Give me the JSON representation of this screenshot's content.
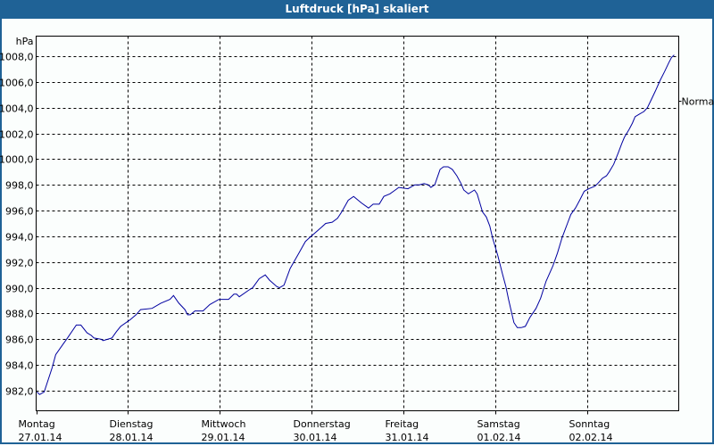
{
  "window": {
    "title": "Luftdruck [hPa] skaliert"
  },
  "colors": {
    "titlebar": "#1f6296",
    "line": "#0000a0",
    "background": "#fbfefd",
    "grid": "#000000"
  },
  "chart_data": {
    "type": "line",
    "title": "Luftdruck [hPa] skaliert",
    "ylabel": "hPa",
    "xlabel": "",
    "ylim": [
      980.5,
      1009.6
    ],
    "yticks": [
      982.0,
      984.0,
      986.0,
      988.0,
      990.0,
      992.0,
      994.0,
      996.0,
      998.0,
      1000.0,
      1002.0,
      1004.0,
      1006.0,
      1008.0
    ],
    "ytick_labels": [
      "982,0",
      "984,0",
      "986,0",
      "988,0",
      "990,0",
      "992,0",
      "994,0",
      "996,0",
      "998,0",
      "1000,0",
      "1002,0",
      "1004,0",
      "1006,0",
      "1008,0"
    ],
    "x_unit": "hours since Montag 27.01.14 00:00",
    "xlim": [
      0,
      168
    ],
    "xticks": [
      {
        "hour": 0,
        "day": "Montag",
        "date": "27.01.14"
      },
      {
        "hour": 24,
        "day": "Dienstag",
        "date": "28.01.14"
      },
      {
        "hour": 48,
        "day": "Mittwoch",
        "date": "29.01.14"
      },
      {
        "hour": 72,
        "day": "Donnerstag",
        "date": "30.01.14"
      },
      {
        "hour": 96,
        "day": "Freitag",
        "date": "31.01.14"
      },
      {
        "hour": 120,
        "day": "Samstag",
        "date": "01.02.14"
      },
      {
        "hour": 144,
        "day": "Sonntag",
        "date": "02.02.14"
      }
    ],
    "reference_marker": {
      "label": "Normal",
      "value": 1004.5
    },
    "grid": true,
    "series": [
      {
        "name": "Luftdruck",
        "x": [
          0.2,
          0.9,
          2.1,
          4.2,
          5.1,
          7.0,
          8.2,
          10.5,
          11.7,
          13.3,
          14.4,
          15.1,
          17.0,
          17.5,
          19.8,
          21.0,
          22.1,
          24.5,
          26.1,
          27.3,
          30.3,
          32.6,
          35.0,
          35.9,
          37.3,
          38.9,
          39.6,
          40.3,
          41.5,
          43.6,
          45.4,
          47.8,
          50.3,
          51.7,
          52.4,
          53.1,
          55.5,
          56.6,
          58.3,
          59.9,
          61.0,
          62.9,
          63.6,
          64.8,
          66.4,
          68.7,
          70.4,
          71.5,
          73.4,
          74.6,
          75.7,
          77.4,
          78.8,
          79.9,
          81.6,
          83.0,
          85.0,
          86.9,
          88.1,
          89.7,
          90.9,
          92.5,
          93.9,
          94.8,
          97.2,
          99.0,
          100.2,
          101.4,
          102.5,
          103.2,
          104.2,
          104.9,
          105.6,
          106.5,
          107.7,
          108.8,
          110.0,
          111.1,
          111.8,
          113.0,
          114.6,
          115.3,
          116.0,
          116.7,
          117.7,
          118.6,
          119.3,
          120.0,
          120.7,
          121.9,
          122.8,
          123.5,
          124.2,
          124.9,
          125.8,
          126.8,
          127.9,
          129.1,
          130.7,
          131.9,
          133.3,
          135.1,
          136.3,
          137.5,
          138.9,
          139.8,
          141.0,
          142.1,
          143.3,
          144.5,
          146.1,
          146.8,
          148.0,
          149.1,
          149.8,
          151.0,
          152.2,
          153.1,
          153.8,
          155.0,
          155.9,
          156.6,
          157.7,
          158.9,
          159.8,
          160.8,
          161.9,
          163.1,
          164.3,
          165.4,
          166.1,
          166.8
        ],
        "values": [
          981.9,
          981.7,
          981.9,
          983.8,
          984.8,
          985.6,
          986.1,
          987.1,
          987.1,
          986.5,
          986.3,
          986.1,
          986.0,
          985.9,
          986.1,
          986.6,
          987.0,
          987.5,
          987.9,
          988.3,
          988.4,
          988.8,
          989.1,
          989.4,
          988.8,
          988.3,
          987.9,
          987.9,
          988.2,
          988.2,
          988.7,
          989.1,
          989.1,
          989.5,
          989.5,
          989.3,
          989.8,
          990.0,
          990.7,
          991.0,
          990.6,
          990.1,
          990.0,
          990.2,
          991.5,
          992.7,
          993.6,
          993.9,
          994.4,
          994.7,
          995.0,
          995.1,
          995.4,
          995.9,
          996.8,
          997.1,
          996.6,
          996.2,
          996.5,
          996.5,
          997.1,
          997.3,
          997.6,
          997.8,
          997.7,
          998.0,
          998.0,
          998.1,
          998.0,
          997.8,
          998.0,
          998.6,
          999.2,
          999.4,
          999.4,
          999.2,
          998.7,
          998.1,
          997.6,
          997.3,
          997.6,
          997.3,
          996.6,
          995.9,
          995.5,
          994.8,
          993.9,
          993.2,
          992.5,
          991.1,
          990.1,
          989.1,
          988.2,
          987.3,
          986.9,
          986.9,
          987.0,
          987.7,
          988.4,
          989.2,
          990.5,
          991.7,
          992.7,
          993.9,
          995.0,
          995.7,
          996.2,
          996.8,
          997.5,
          997.7,
          997.9,
          998.1,
          998.5,
          998.7,
          999.0,
          999.6,
          1000.5,
          1001.2,
          1001.7,
          1002.3,
          1002.8,
          1003.3,
          1003.5,
          1003.7,
          1004.0,
          1004.6,
          1005.3,
          1006.1,
          1006.8,
          1007.5,
          1007.9,
          1008.1
        ]
      }
    ]
  }
}
